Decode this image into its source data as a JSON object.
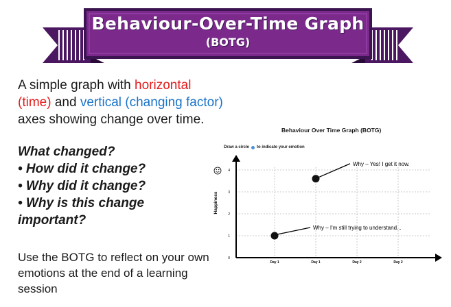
{
  "banner": {
    "title": "Behaviour-Over-Time Graph",
    "subtitle": "(BOTG)",
    "color": "#7b2a8c"
  },
  "intro": {
    "part1": "A simple graph with ",
    "horizontal": "horizontal",
    "time": "(time)",
    "part2": " and ",
    "vertical": "vertical (changing factor)",
    "part3": " axes showing change over time."
  },
  "questions": [
    "What changed?",
    "• How did it change?",
    "• Why did it change?",
    "• Why is this change important?"
  ],
  "reflect": "Use the BOTG to reflect on your own emotions at the end of a learning session",
  "graph": {
    "title": "Behaviour Over Time Graph (BOTG)",
    "instruction_before": "Draw a circle",
    "instruction_after": "to indicate your emotion",
    "face_icon": "smiley-icon"
  },
  "chart_data": {
    "type": "scatter",
    "title": "Behaviour Over Time Graph (BOTG)",
    "xlabel": "",
    "ylabel": "Happiness",
    "categories": [
      "Day 1",
      "Day 1",
      "Day 2",
      "Day 2"
    ],
    "y_ticks": [
      "0",
      "1",
      "2",
      "3",
      "4"
    ],
    "ylim": [
      0,
      4
    ],
    "grid": true,
    "points": [
      {
        "category_index": 0,
        "y": 1,
        "annotation": "Why – I'm still trying to understand..."
      },
      {
        "category_index": 1,
        "y": 3.6,
        "annotation": "Why – Yes! I get it now."
      }
    ]
  }
}
